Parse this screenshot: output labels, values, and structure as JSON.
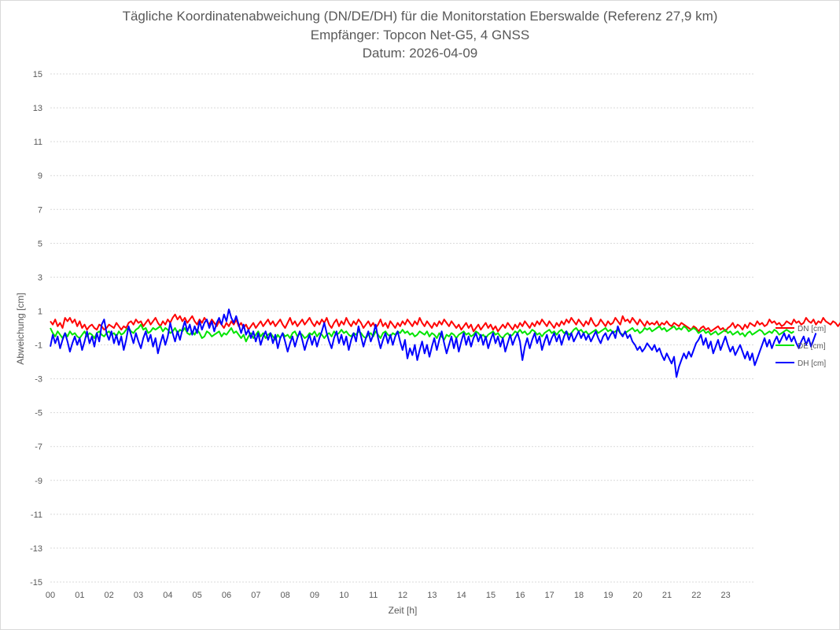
{
  "chart_data": {
    "type": "line",
    "title": "Tägliche Koordinatenabweichung (DN/DE/DH) für die Monitorstation Eberswalde (Referenz 27,9 km)",
    "subtitle_1": "Empfänger: Topcon Net-G5, 4 GNSS",
    "subtitle_2": "Datum: 2026-04-09",
    "xlabel": "Zeit [h]",
    "ylabel": "Abweichung [cm]",
    "xlim": [
      0,
      24
    ],
    "ylim": [
      -15,
      15
    ],
    "x_ticks": [
      "00",
      "01",
      "02",
      "03",
      "04",
      "05",
      "06",
      "07",
      "08",
      "09",
      "10",
      "11",
      "12",
      "13",
      "14",
      "15",
      "16",
      "17",
      "18",
      "19",
      "20",
      "21",
      "22",
      "23"
    ],
    "y_ticks": [
      "15",
      "13",
      "11",
      "9",
      "7",
      "5",
      "3",
      "1",
      "-1",
      "-3",
      "-5",
      "-7",
      "-9",
      "-11",
      "-13",
      "-15"
    ],
    "grid": "horizontal dotted",
    "legend_position": "right",
    "x_step_hours": 0.0833,
    "series": [
      {
        "name": "DN [cm]",
        "color": "#ff0000",
        "values": [
          0.4,
          0.2,
          0.5,
          0.1,
          0.3,
          0.0,
          0.6,
          0.4,
          0.6,
          0.3,
          0.5,
          0.1,
          0.4,
          0.0,
          0.2,
          -0.1,
          0.1,
          0.2,
          0.0,
          -0.1,
          0.2,
          0.1,
          -0.1,
          0.0,
          0.2,
          0.1,
          0.0,
          0.3,
          0.1,
          -0.1,
          0.1,
          0.0,
          0.3,
          0.4,
          0.2,
          0.5,
          0.3,
          0.4,
          0.1,
          0.3,
          0.5,
          0.2,
          0.4,
          0.6,
          0.3,
          0.1,
          0.4,
          0.2,
          0.5,
          0.3,
          0.6,
          0.8,
          0.5,
          0.7,
          0.4,
          0.6,
          0.3,
          0.5,
          0.7,
          0.4,
          0.2,
          0.5,
          0.3,
          0.6,
          0.4,
          0.2,
          0.5,
          0.3,
          0.1,
          0.4,
          0.2,
          0.0,
          0.3,
          0.1,
          0.4,
          0.2,
          0.5,
          0.1,
          0.3,
          0.0,
          0.2,
          -0.1,
          0.1,
          0.3,
          0.0,
          0.2,
          0.4,
          0.1,
          0.3,
          0.5,
          0.2,
          0.4,
          0.1,
          0.3,
          0.5,
          0.2,
          0.0,
          0.3,
          0.6,
          0.2,
          0.4,
          0.1,
          0.3,
          0.5,
          0.2,
          0.4,
          0.6,
          0.3,
          0.1,
          0.4,
          0.2,
          0.5,
          0.3,
          0.6,
          0.2,
          0.0,
          0.3,
          0.5,
          0.1,
          0.4,
          0.2,
          0.6,
          0.3,
          0.1,
          0.4,
          0.2,
          0.5,
          0.3,
          0.0,
          0.2,
          0.4,
          0.1,
          0.3,
          0.0,
          0.2,
          0.5,
          0.1,
          0.3,
          0.0,
          0.4,
          0.2,
          0.0,
          0.3,
          0.1,
          0.4,
          0.2,
          0.5,
          0.3,
          0.1,
          0.4,
          0.2,
          0.6,
          0.3,
          0.1,
          0.4,
          0.2,
          0.0,
          0.3,
          0.1,
          0.4,
          0.2,
          0.5,
          0.3,
          0.1,
          0.4,
          0.2,
          0.0,
          0.2,
          -0.1,
          0.1,
          0.3,
          0.0,
          0.2,
          -0.2,
          0.0,
          0.2,
          -0.1,
          0.1,
          0.3,
          0.0,
          0.2,
          -0.1,
          0.1,
          -0.2,
          0.0,
          0.2,
          0.0,
          0.3,
          0.1,
          -0.1,
          0.2,
          0.0,
          0.3,
          0.1,
          0.4,
          0.2,
          0.0,
          0.3,
          0.1,
          0.4,
          0.2,
          0.5,
          0.3,
          0.1,
          0.4,
          0.2,
          0.0,
          0.3,
          0.1,
          0.4,
          0.2,
          0.5,
          0.3,
          0.6,
          0.4,
          0.2,
          0.5,
          0.3,
          0.1,
          0.4,
          0.2,
          0.6,
          0.3,
          0.1,
          0.2,
          0.5,
          0.3,
          0.1,
          0.4,
          0.2,
          0.3,
          0.6,
          0.4,
          0.2,
          0.7,
          0.4,
          0.5,
          0.3,
          0.6,
          0.4,
          0.2,
          0.5,
          0.3,
          0.1,
          0.4,
          0.2,
          0.3,
          0.2,
          0.4,
          0.1,
          0.3,
          0.2,
          0.4,
          0.2,
          0.1,
          0.3,
          0.2,
          0.1,
          0.3,
          0.2,
          0.1,
          0.0,
          -0.1,
          0.1,
          0.0,
          -0.2,
          0.0,
          0.1,
          -0.1,
          0.0,
          -0.2,
          -0.1,
          0.0,
          0.1,
          -0.1,
          0.0,
          -0.2,
          0.0,
          0.1,
          0.3,
          0.0,
          0.2,
          0.1,
          -0.1,
          0.2,
          0.0,
          0.3,
          0.2,
          0.1,
          0.4,
          0.2,
          0.3,
          0.1,
          0.2,
          0.5,
          0.3,
          0.4,
          0.2,
          0.3,
          0.1,
          0.2,
          0.4,
          0.3,
          0.2,
          0.5,
          0.3,
          0.4,
          0.2,
          0.3,
          0.6,
          0.4,
          0.3,
          0.5,
          0.2,
          0.4,
          0.3,
          0.6,
          0.4,
          0.3,
          0.2,
          0.4,
          0.3,
          0.1,
          0.3,
          0.2,
          0.3,
          0.1,
          0.2,
          0.1
        ],
        "note": ""
      },
      {
        "name": "DE [cm]",
        "color": "#00e400",
        "values": [
          0.0,
          -0.3,
          -0.5,
          -0.2,
          -0.4,
          -0.6,
          -0.3,
          -0.5,
          -0.2,
          -0.4,
          -0.3,
          -0.5,
          -0.6,
          -0.4,
          -0.2,
          -0.5,
          -0.3,
          -0.4,
          -0.6,
          -0.3,
          -0.2,
          -0.4,
          -0.5,
          -0.3,
          -0.2,
          -0.4,
          -0.3,
          -0.5,
          -0.2,
          -0.4,
          -0.3,
          -0.1,
          0.0,
          -0.2,
          -0.3,
          -0.1,
          0.0,
          0.2,
          -0.1,
          0.0,
          -0.3,
          -0.2,
          0.0,
          -0.1,
          0.0,
          0.1,
          -0.2,
          0.0,
          -0.1,
          -0.3,
          -0.2,
          0.0,
          -0.3,
          -0.1,
          -0.2,
          0.0,
          -0.3,
          -0.4,
          -0.2,
          -0.4,
          -0.1,
          -0.3,
          -0.6,
          -0.5,
          -0.2,
          -0.3,
          -0.5,
          -0.4,
          -0.3,
          -0.2,
          -0.5,
          -0.3,
          -0.4,
          -0.2,
          0.0,
          -0.3,
          -0.2,
          -0.4,
          -0.6,
          -0.4,
          -0.8,
          -0.5,
          -0.3,
          -0.6,
          -0.4,
          -0.2,
          -0.5,
          -0.3,
          -0.6,
          -0.4,
          -0.3,
          -0.5,
          -0.7,
          -0.4,
          -0.6,
          -0.3,
          -0.5,
          -0.4,
          -0.6,
          -0.3,
          -0.2,
          -0.5,
          -0.3,
          -0.4,
          -0.6,
          -0.5,
          -0.3,
          -0.4,
          -0.2,
          -0.5,
          -0.3,
          -0.4,
          -0.6,
          -0.4,
          -0.3,
          -0.5,
          -0.2,
          -0.4,
          -0.3,
          -0.1,
          -0.3,
          -0.2,
          -0.4,
          -0.5,
          -0.3,
          -0.4,
          -0.2,
          -0.3,
          -0.5,
          -0.6,
          -0.4,
          -0.3,
          -0.5,
          -0.2,
          -0.4,
          -0.6,
          -0.3,
          -0.2,
          -0.4,
          -0.5,
          -0.3,
          -0.4,
          -0.2,
          -0.3,
          -0.1,
          -0.3,
          -0.2,
          -0.4,
          -0.3,
          -0.5,
          -0.4,
          -0.2,
          -0.3,
          -0.4,
          -0.2,
          -0.5,
          -0.3,
          -0.4,
          -0.6,
          -0.3,
          -0.5,
          -0.7,
          -0.4,
          -0.5,
          -0.3,
          -0.4,
          -0.6,
          -0.4,
          -0.3,
          -0.2,
          -0.4,
          -0.3,
          -0.5,
          -0.4,
          -0.2,
          -0.3,
          -0.5,
          -0.4,
          -0.6,
          -0.4,
          -0.3,
          -0.2,
          -0.4,
          -0.3,
          -0.5,
          -0.6,
          -0.4,
          -0.3,
          -0.5,
          -0.4,
          -0.2,
          -0.3,
          -0.1,
          -0.3,
          -0.2,
          -0.4,
          -0.3,
          -0.1,
          -0.2,
          -0.4,
          -0.3,
          -0.5,
          -0.3,
          -0.2,
          -0.1,
          -0.3,
          -0.2,
          -0.4,
          -0.2,
          -0.1,
          -0.3,
          -0.2,
          -0.4,
          -0.3,
          -0.1,
          0.0,
          -0.2,
          -0.1,
          -0.3,
          -0.2,
          -0.4,
          -0.3,
          -0.2,
          -0.1,
          -0.3,
          -0.2,
          -0.1,
          0.0,
          -0.2,
          -0.1,
          -0.3,
          -0.2,
          -0.1,
          -0.3,
          -0.4,
          -0.3,
          -0.2,
          -0.1,
          0.0,
          -0.2,
          -0.1,
          -0.3,
          -0.2,
          0.0,
          -0.1,
          0.0,
          -0.2,
          -0.1,
          0.0,
          0.1,
          -0.1,
          0.0,
          -0.2,
          -0.1,
          0.0,
          0.1,
          -0.1,
          0.0,
          -0.1,
          0.1,
          0.0,
          -0.2,
          -0.1,
          0.0,
          -0.1,
          -0.3,
          -0.2,
          -0.1,
          -0.3,
          -0.2,
          -0.4,
          -0.3,
          -0.2,
          -0.4,
          -0.3,
          -0.2,
          -0.1,
          -0.3,
          -0.2,
          -0.4,
          -0.3,
          -0.2,
          -0.4,
          -0.3,
          -0.5,
          -0.3,
          -0.2,
          -0.4,
          -0.3,
          -0.2,
          -0.1,
          -0.2,
          -0.4,
          -0.3,
          -0.2,
          -0.3,
          -0.1,
          -0.2,
          -0.4,
          -0.3,
          -0.2,
          -0.1,
          -0.2,
          -0.3,
          -0.2
        ],
        "note": ""
      },
      {
        "name": "DH [cm]",
        "color": "#0000ff",
        "values": [
          -1.1,
          -0.4,
          -0.9,
          -0.5,
          -1.2,
          -0.7,
          -0.3,
          -0.8,
          -1.4,
          -0.9,
          -0.5,
          -1.0,
          -0.6,
          -1.3,
          -0.8,
          -0.2,
          -0.9,
          -0.5,
          -1.1,
          -0.3,
          -0.8,
          0.2,
          0.5,
          -0.3,
          -0.7,
          -0.2,
          -0.9,
          -0.4,
          -1.0,
          -0.5,
          -1.3,
          -0.7,
          0.1,
          -0.4,
          -0.9,
          -0.3,
          -0.8,
          -1.2,
          -0.6,
          -0.2,
          -0.8,
          -0.4,
          -1.1,
          -0.6,
          -1.5,
          -0.9,
          -0.4,
          -1.0,
          -0.5,
          0.3,
          -0.3,
          -0.8,
          -0.2,
          -0.7,
          -0.1,
          0.4,
          -0.2,
          0.2,
          -0.4,
          0.1,
          -0.3,
          0.4,
          -0.1,
          0.3,
          0.5,
          0.0,
          0.4,
          -0.2,
          0.3,
          0.6,
          0.2,
          0.8,
          0.4,
          1.1,
          0.6,
          0.3,
          0.7,
          0.2,
          -0.3,
          0.2,
          -0.4,
          -0.1,
          -0.6,
          -0.2,
          -0.8,
          -0.3,
          -1.0,
          -0.5,
          -0.2,
          -0.7,
          -0.3,
          -0.9,
          -0.4,
          -1.2,
          -0.6,
          -0.3,
          -0.8,
          -1.4,
          -0.9,
          -0.5,
          -1.1,
          -0.6,
          -0.2,
          -0.7,
          -1.3,
          -0.8,
          -0.4,
          -1.0,
          -0.5,
          -1.1,
          -0.6,
          -0.2,
          0.3,
          -0.3,
          -0.8,
          -1.2,
          -0.6,
          -0.2,
          -0.9,
          -0.4,
          -1.0,
          -0.5,
          -1.3,
          -0.7,
          -0.3,
          -0.8,
          0.1,
          -0.5,
          -1.1,
          -0.6,
          -0.2,
          -0.8,
          -0.4,
          0.2,
          -0.6,
          -1.2,
          -0.7,
          -0.3,
          -0.9,
          -0.4,
          -1.0,
          -0.5,
          -0.2,
          -0.8,
          -1.3,
          -0.7,
          -1.8,
          -1.2,
          -1.6,
          -1.0,
          -1.9,
          -1.3,
          -0.8,
          -1.5,
          -1.0,
          -1.7,
          -1.1,
          -0.6,
          -1.3,
          -0.7,
          -0.2,
          -0.9,
          -1.5,
          -1.0,
          -0.5,
          -1.2,
          -0.6,
          -1.4,
          -0.8,
          -0.3,
          -1.0,
          -0.5,
          -1.1,
          -0.6,
          -0.3,
          -0.8,
          -0.4,
          -1.0,
          -0.5,
          -1.2,
          -0.7,
          -0.3,
          -0.9,
          -0.5,
          -1.1,
          -0.6,
          -1.4,
          -0.9,
          -0.4,
          -1.0,
          -0.6,
          -0.3,
          -0.8,
          -1.9,
          -1.1,
          -0.6,
          -1.2,
          -0.7,
          -0.3,
          -0.9,
          -0.5,
          -1.3,
          -0.8,
          -0.4,
          -1.0,
          -0.6,
          -0.3,
          -0.8,
          -0.4,
          -1.0,
          -0.5,
          -0.2,
          -0.7,
          -0.3,
          -0.8,
          -0.5,
          -0.2,
          -0.6,
          -0.3,
          -0.7,
          -0.4,
          -0.8,
          -0.5,
          -0.2,
          -0.6,
          -0.9,
          -0.5,
          -0.3,
          -0.7,
          -0.4,
          -0.2,
          -0.6,
          0.1,
          -0.3,
          -0.5,
          -0.2,
          -0.6,
          -0.4,
          -0.8,
          -1.0,
          -1.3,
          -1.1,
          -1.4,
          -1.2,
          -0.9,
          -1.1,
          -1.3,
          -1.0,
          -1.4,
          -1.2,
          -1.6,
          -1.9,
          -1.5,
          -1.8,
          -2.1,
          -1.7,
          -2.9,
          -2.3,
          -1.9,
          -1.5,
          -1.8,
          -1.4,
          -1.7,
          -1.3,
          -0.9,
          -0.7,
          -0.4,
          -1.0,
          -0.6,
          -1.2,
          -0.8,
          -1.5,
          -1.1,
          -0.7,
          -1.3,
          -0.9,
          -0.5,
          -1.0,
          -1.4,
          -1.1,
          -1.6,
          -1.3,
          -1.0,
          -1.4,
          -1.8,
          -1.4,
          -1.9,
          -1.5,
          -2.2,
          -1.8,
          -1.4,
          -1.0,
          -0.6,
          -1.1,
          -0.7,
          -1.2,
          -0.8,
          -0.5,
          -0.9,
          -0.6,
          -0.3,
          -0.7,
          -0.4,
          -0.8,
          -0.5,
          -0.9,
          -1.2,
          -0.8,
          -0.5,
          -1.0,
          -0.6,
          -1.1,
          -0.7,
          -0.3
        ]
      }
    ]
  }
}
